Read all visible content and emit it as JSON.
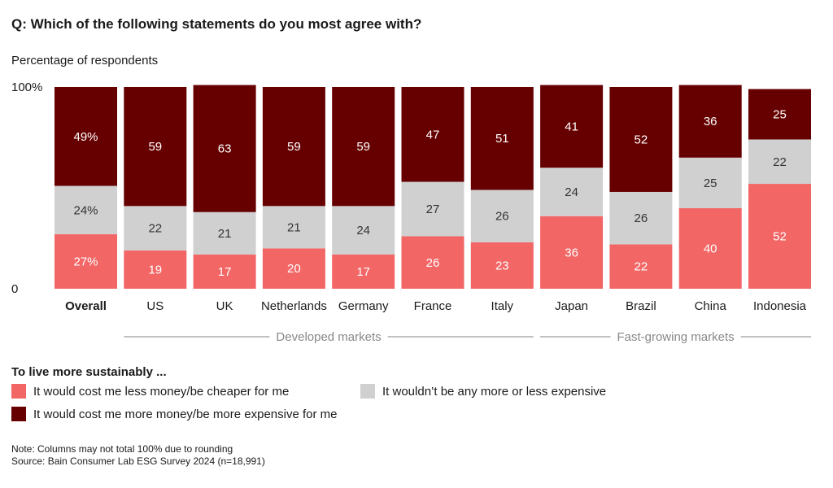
{
  "title": "Q: Which of the following statements do you most agree with?",
  "subtitle": "Percentage of respondents",
  "colors": {
    "cheaper": "#f26666",
    "neutral": "#d0d0d0",
    "more_expensive": "#660000",
    "group_line": "#9a9a9a",
    "group_text": "#888888"
  },
  "chart_data": {
    "type": "bar",
    "stacked": true,
    "ylim": [
      0,
      100
    ],
    "ytick_labels": [
      "0",
      "100%"
    ],
    "categories": [
      "Overall",
      "US",
      "UK",
      "Netherlands",
      "Germany",
      "France",
      "Italy",
      "Japan",
      "Brazil",
      "China",
      "Indonesia"
    ],
    "value_labels": {
      "cheaper": [
        "27%",
        "19",
        "17",
        "20",
        "17",
        "26",
        "23",
        "36",
        "22",
        "40",
        "52"
      ],
      "neutral": [
        "24%",
        "22",
        "21",
        "21",
        "24",
        "27",
        "26",
        "24",
        "26",
        "25",
        "22"
      ],
      "more_expensive": [
        "49%",
        "59",
        "63",
        "59",
        "59",
        "47",
        "51",
        "41",
        "52",
        "36",
        "25"
      ]
    },
    "series": [
      {
        "name": "It would cost me less money/be cheaper for me",
        "key": "cheaper",
        "values": [
          27,
          19,
          17,
          20,
          17,
          26,
          23,
          36,
          22,
          40,
          52
        ]
      },
      {
        "name": "It wouldn’t be any more or less expensive",
        "key": "neutral",
        "values": [
          24,
          22,
          21,
          21,
          24,
          27,
          26,
          24,
          26,
          25,
          22
        ]
      },
      {
        "name": "It would cost me more money/be more expensive for me",
        "key": "more_expensive",
        "values": [
          49,
          59,
          63,
          59,
          59,
          47,
          51,
          41,
          52,
          36,
          25
        ]
      }
    ],
    "groups": [
      {
        "label": "Developed markets",
        "from": 1,
        "to": 6
      },
      {
        "label": "Fast-growing markets",
        "from": 7,
        "to": 10
      }
    ]
  },
  "legend": {
    "heading": "To live more sustainably ...",
    "items": [
      "It would cost me less money/be cheaper for me",
      "It wouldn’t be any more or less expensive",
      "It would cost me more money/be more expensive for me"
    ]
  },
  "notes": {
    "note": "Note: Columns may not total 100% due to rounding",
    "source": "Source: Bain Consumer Lab ESG Survey 2024 (n=18,991)"
  }
}
